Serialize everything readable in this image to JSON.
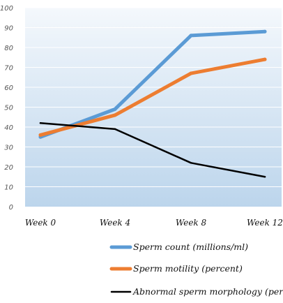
{
  "chart_data": {
    "type": "line",
    "title": "",
    "xlabel": "",
    "ylabel": "",
    "categories": [
      "Week 0",
      "Week 4",
      "Week 8",
      "Week 12"
    ],
    "ylim": [
      0,
      100
    ],
    "yticks": [
      0,
      10,
      20,
      30,
      40,
      50,
      60,
      70,
      80,
      90,
      100
    ],
    "grid": true,
    "legend_position": "bottom",
    "series": [
      {
        "name": "Sperm count (millions/ml)",
        "values": [
          35,
          49,
          86,
          88
        ],
        "color": "#5b9bd5"
      },
      {
        "name": "Sperm motility (percent)",
        "values": [
          36,
          46,
          67,
          74
        ],
        "color": "#ed7d31"
      },
      {
        "name": "Abnormal sperm morphology (percent)",
        "values": [
          42,
          39,
          22,
          15
        ],
        "color": "#000000"
      }
    ]
  }
}
